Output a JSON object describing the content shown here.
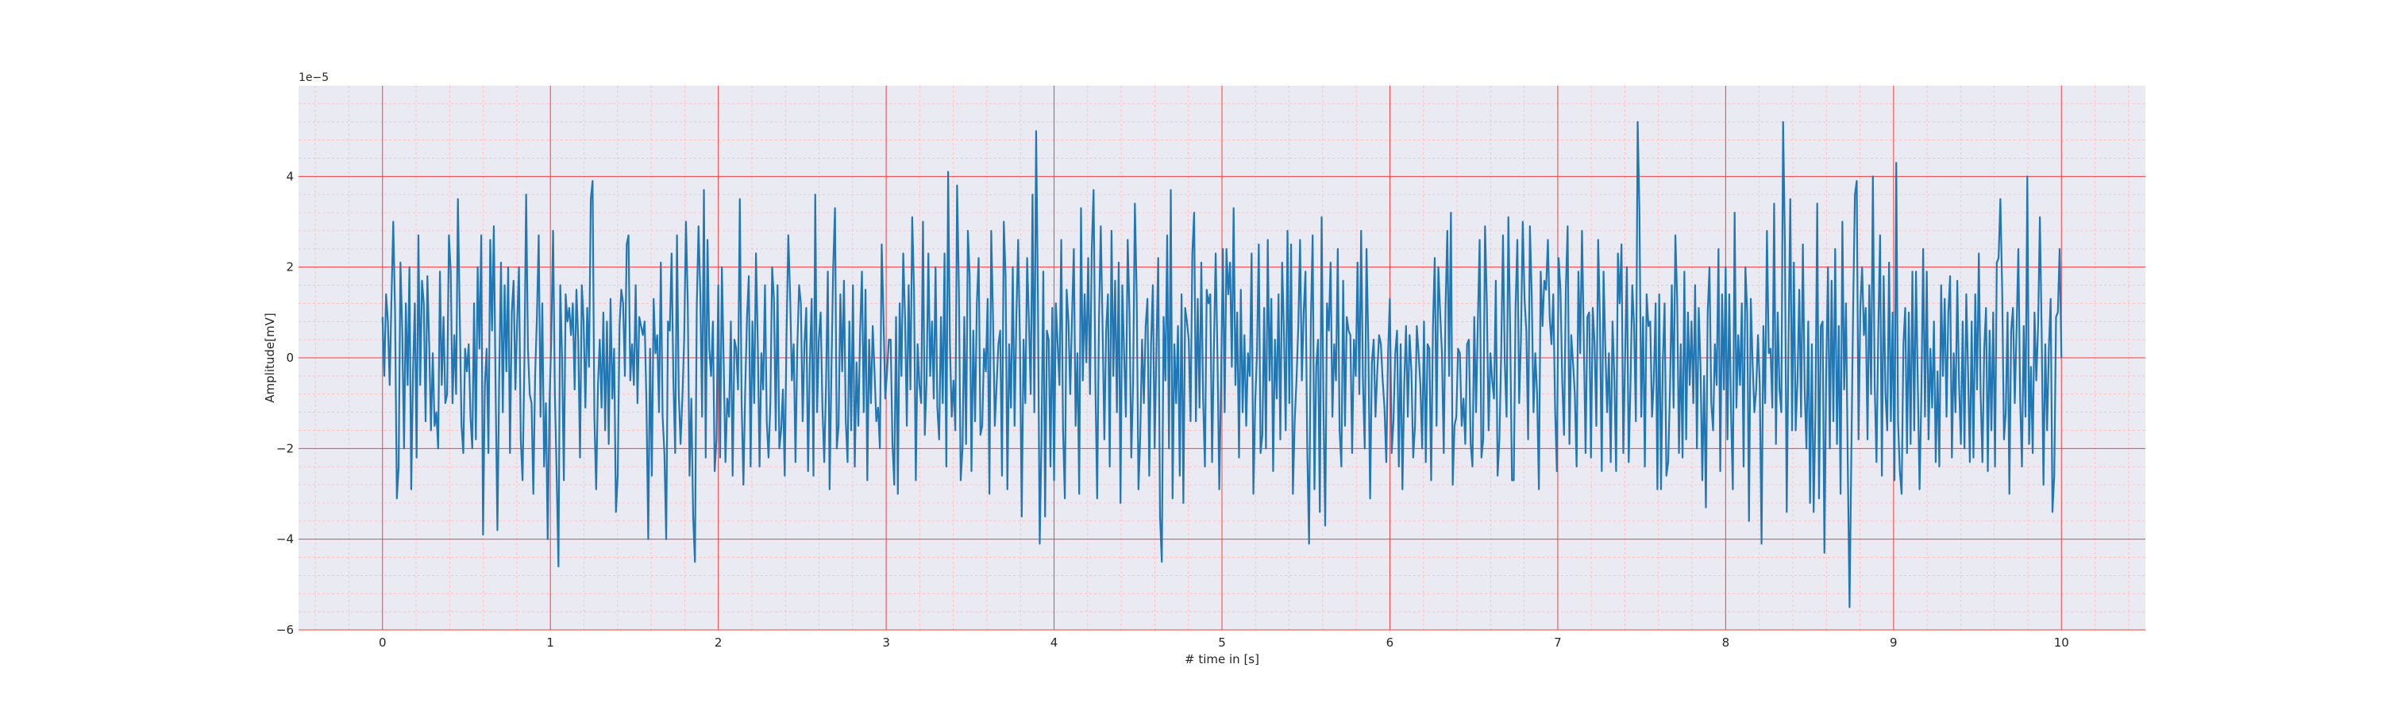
{
  "chart_data": {
    "type": "line",
    "title": "",
    "xlabel": "# time in [s]",
    "ylabel": "Amplitude[mV]",
    "xlim": [
      -0.5,
      10.5
    ],
    "ylim": [
      -6.0,
      6.0
    ],
    "y_offset_label": "1e−5",
    "x_ticks": [
      "0",
      "1",
      "2",
      "3",
      "4",
      "5",
      "6",
      "7",
      "8",
      "9",
      "10"
    ],
    "y_ticks": [
      "−6",
      "−4",
      "−2",
      "0",
      "2",
      "4"
    ],
    "grid": {
      "major": true,
      "minor": true,
      "major_color": "#ff3b3b",
      "minor_color": "#ffb3b3"
    },
    "colors": {
      "background": "#eaeaf2",
      "line": "#1f77b4"
    },
    "series": [
      {
        "x_start": 0,
        "x_end": 10,
        "values": [
          0.9,
          -0.4,
          1.4,
          0.8,
          -0.6,
          1.3,
          3.0,
          1.0,
          -3.1,
          -2.4,
          2.1,
          0.6,
          -2.0,
          1.2,
          -0.6,
          2.0,
          -2.9,
          -0.3,
          1.2,
          -2.2,
          2.7,
          -0.6,
          1.7,
          1.2,
          -1.4,
          1.8,
          0.3,
          -1.6,
          0.1,
          -1.5,
          -1.2,
          -2.0,
          1.9,
          -0.6,
          0.9,
          -1.0,
          -0.8,
          2.7,
          1.9,
          -1.0,
          0.5,
          -0.8,
          3.5,
          1.0,
          -1.5,
          -2.1,
          0.2,
          -0.3,
          0.3,
          -1.3,
          -2.0,
          1.2,
          -1.8,
          2.0,
          0.2,
          2.7,
          -3.9,
          -0.6,
          0.2,
          -2.1,
          2.6,
          0.6,
          2.9,
          -0.7,
          -3.8,
          -0.4,
          2.1,
          -1.2,
          1.6,
          -0.3,
          2.0,
          -2.1,
          1.0,
          1.7,
          -0.7,
          0.8,
          2.0,
          -1.8,
          -2.7,
          -0.2,
          3.6,
          0.2,
          -0.8,
          -1.0,
          -3.0,
          -0.4,
          0.9,
          2.7,
          -1.3,
          1.2,
          -2.4,
          -1.0,
          -4.0,
          -1.0,
          0.4,
          2.8,
          -0.8,
          -2.6,
          -4.6,
          1.6,
          0.0,
          -2.7,
          1.4,
          0.8,
          1.1,
          0.5,
          1.2,
          -0.7,
          1.5,
          0.4,
          -2.2,
          1.6,
          0.8,
          -1.1,
          1.1,
          -0.2,
          3.5,
          3.9,
          -1.3,
          -2.9,
          -0.6,
          0.4,
          -1.1,
          1.0,
          -1.6,
          0.8,
          -1.9,
          1.3,
          -0.9,
          0.2,
          -3.4,
          -2.6,
          0.7,
          1.5,
          1.2,
          -0.4,
          2.5,
          2.7,
          -0.5,
          0.3,
          -0.6,
          1.6,
          -1.0,
          0.9,
          0.7,
          0.5,
          0.8,
          -1.0,
          -4.0,
          0.2,
          -2.6,
          1.3,
          0.1,
          0.5,
          -1.2,
          2.1,
          -1.3,
          -2.1,
          -4.0,
          0.8,
          0.6,
          2.3,
          -0.5,
          -2.1,
          2.7,
          -0.8,
          -1.9,
          -0.9,
          0.4,
          3.0,
          1.2,
          -2.6,
          -0.9,
          -3.5,
          -4.5,
          1.1,
          2.9,
          1.4,
          -1.3,
          3.7,
          -2.2,
          2.6,
          0.2,
          -0.4,
          0.8,
          -2.5,
          -1.8,
          1.6,
          -2.2,
          2.0,
          -0.1,
          -2.3,
          -0.9,
          -1.3,
          0.8,
          -2.6,
          0.4,
          0.2,
          -0.7,
          3.5,
          -1.0,
          -2.8,
          -0.7,
          0.9,
          1.8,
          -2.4,
          0.8,
          -1.0,
          2.3,
          0.3,
          -2.4,
          0.1,
          -0.7,
          1.6,
          -1.4,
          -2.2,
          -1.0,
          2.0,
          1.3,
          -1.6,
          1.6,
          -2.0,
          -1.6,
          -0.7,
          -2.6,
          0.5,
          2.7,
          1.4,
          -0.5,
          0.3,
          -2.3,
          0.2,
          1.6,
          1.2,
          -1.4,
          0.3,
          1.1,
          -2.5,
          -0.1,
          1.3,
          -2.6,
          3.6,
          -1.2,
          0.4,
          1.0,
          -1.1,
          -2.3,
          -0.6,
          1.9,
          -2.9,
          -0.3,
          2.0,
          3.3,
          -2.0,
          -1.5,
          1.4,
          -0.3,
          1.7,
          -1.4,
          -2.3,
          0.8,
          -1.6,
          1.6,
          -2.4,
          -0.1,
          -1.5,
          0.6,
          1.9,
          -1.2,
          1.5,
          -2.7,
          0.4,
          -1.0,
          0.7,
          -0.3,
          -1.4,
          -1.1,
          -2.0,
          2.5,
          0.9,
          -0.9,
          -0.3,
          0.4,
          0.4,
          -1.9,
          -2.8,
          0.9,
          -3.0,
          1.2,
          -0.4,
          2.3,
          0.9,
          -1.5,
          1.6,
          -0.7,
          3.1,
          1.5,
          -2.7,
          0.3,
          -0.6,
          -1.0,
          3.0,
          -1.7,
          -0.5,
          2.3,
          -0.4,
          0.8,
          -0.9,
          2.0,
          -1.1,
          -1.8,
          0.9,
          -1.0,
          2.3,
          -2.4,
          4.1,
          0.3,
          -1.3,
          -0.5,
          -1.6,
          3.8,
          1.5,
          -2.7,
          -2.0,
          0.9,
          -1.9,
          2.8,
          1.8,
          -2.5,
          0.6,
          -1.4,
          1.2,
          2.2,
          -1.7,
          -1.5,
          0.2,
          -0.3,
          1.3,
          -3.0,
          2.8,
          0.9,
          -1.5,
          -0.6,
          0.3,
          0.6,
          -2.6,
          3.0,
          1.8,
          -2.9,
          0.3,
          -1.1,
          2.0,
          -1.5,
          0.9,
          2.6,
          0.3,
          -3.5,
          0.4,
          -1.0,
          2.2,
          0.8,
          -0.8,
          3.6,
          -1.2,
          5.0,
          1.3,
          -4.1,
          -1.8,
          1.9,
          -3.5,
          0.6,
          0.4,
          -2.4,
          1.1,
          -2.7,
          1.2,
          0.3,
          -0.6,
          2.6,
          -1.6,
          -3.1,
          1.5,
          0.8,
          -0.8,
          0.9,
          2.4,
          -1.5,
          0.1,
          -3.0,
          3.3,
          -0.5,
          1.4,
          -0.1,
          2.2,
          -0.8,
          2.4,
          3.7,
          -0.5,
          -3.1,
          0.8,
          2.9,
          0.7,
          -1.8,
          0.6,
          1.4,
          -2.4,
          2.8,
          -0.4,
          1.7,
          -1.2,
          2.1,
          -3.2,
          1.6,
          0.1,
          -1.3,
          2.6,
          1.0,
          -2.2,
          -0.6,
          3.4,
          1.4,
          -2.9,
          -1.7,
          0.4,
          -1.0,
          0.7,
          1.3,
          -2.6,
          0.3,
          1.6,
          -2.0,
          0.2,
          2.2,
          -3.5,
          -4.5,
          0.9,
          -0.5,
          2.7,
          -2.0,
          3.7,
          -3.1,
          0.3,
          -1.0,
          0.7,
          -2.6,
          1.4,
          -3.2,
          1.1,
          0.8,
          0.4,
          -1.4,
          2.3,
          3.2,
          -1.4,
          1.3,
          -1.1,
          2.1,
          -0.9,
          -2.4,
          1.5,
          1.2,
          1.4,
          -2.3,
          0.2,
          2.3,
          0.0,
          -2.9,
          -0.5,
          2.4,
          -1.2,
          2.4,
          1.4,
          2.1,
          -0.2,
          3.3,
          -0.6,
          1.0,
          -2.2,
          1.5,
          -1.2,
          0.5,
          -1.5,
          0.1,
          -0.4,
          2.3,
          -3.0,
          -1.0,
          0.1,
          2.5,
          -2.1,
          -1.7,
          1.1,
          -2.0,
          2.6,
          -0.5,
          1.3,
          -2.5,
          0.4,
          -0.9,
          1.4,
          -1.8,
          2.1,
          0.6,
          -1.6,
          2.8,
          -1.0,
          2.5,
          -3.0,
          -1.4,
          -0.5,
          0.7,
          2.6,
          -0.5,
          1.0,
          1.9,
          -2.0,
          -4.1,
          0.8,
          2.7,
          -2.9,
          -0.2,
          0.4,
          -3.4,
          3.1,
          -1.0,
          -3.7,
          1.2,
          0.6,
          2.1,
          -1.3,
          0.3,
          -0.5,
          2.4,
          -1.6,
          -2.4,
          1.7,
          -1.5,
          0.9,
          0.6,
          0.5,
          -2.1,
          0.4,
          -0.4,
          2.1,
          -0.8,
          2.8,
          -0.5,
          -2.0,
          2.4,
          0.3,
          -3.1,
          -0.1,
          0.4,
          -1.3,
          -0.3,
          0.5,
          0.3,
          -0.5,
          -1.1,
          -2.3,
          0.1,
          1.3,
          -2.1,
          -1.4,
          0.1,
          0.6,
          -2.4,
          0.3,
          -2.9,
          -0.6,
          0.7,
          -1.3,
          0.5,
          -0.3,
          -2.2,
          -1.5,
          0.7,
          0.1,
          -0.6,
          -2.0,
          0.8,
          -2.3,
          0.3,
          0.2,
          -2.7,
          0.7,
          2.2,
          -1.5,
          2.0,
          1.0,
          0.1,
          -2.1,
          1.1,
          2.8,
          -0.4,
          3.2,
          -2.8,
          -1.5,
          -1.3,
          0.2,
          0.1,
          -1.5,
          -0.9,
          -1.9,
          0.3,
          0.4,
          -1.9,
          -2.4,
          0.9,
          -1.2,
          0.8,
          2.6,
          -2.2,
          -1.8,
          2.9,
          1.2,
          -1.6,
          0.1,
          -0.5,
          -0.9,
          1.7,
          -2.6,
          -1.8,
          0.1,
          2.7,
          -0.1,
          -1.3,
          3.1,
          0.6,
          -2.7,
          -2.7,
          1.1,
          2.6,
          -1.0,
          0.4,
          3.0,
          1.3,
          0.6,
          -1.8,
          2.9,
          1.4,
          -1.2,
          0.1,
          -0.8,
          -2.9,
          1.9,
          0.7,
          1.7,
          1.5,
          2.6,
          0.9,
          0.3,
          1.4,
          -1.1,
          -2.5,
          2.2,
          1.5,
          -0.5,
          -1.7,
          1.5,
          2.9,
          -1.9,
          0.5,
          -0.1,
          -0.8,
          -2.4,
          1.9,
          0.1,
          2.8,
          0.4,
          -2.1,
          0.9,
          1.0,
          -2.2,
          1.1,
          0.3,
          -1.5,
          2.6,
          0.8,
          -2.5,
          1.9,
          0.2,
          -1.2,
          0.1,
          -2.3,
          0.8,
          -0.4,
          -2.5,
          2.3,
          1.2,
          2.5,
          -2.1,
          0.0,
          2.0,
          -2.3,
          -0.6,
          1.6,
          0.7,
          -1.4,
          5.2,
          3.2,
          -1.3,
          0.9,
          -2.4,
          1.4,
          0.7,
          0.8,
          -1.3,
          -0.5,
          1.2,
          -2.9,
          1.4,
          -2.9,
          -0.1,
          1.2,
          -2.6,
          -2.3,
          -0.7,
          1.6,
          -1.1,
          2.7,
          1.3,
          -2.1,
          0.3,
          -2.2,
          1.9,
          -1.8,
          1.0,
          -0.6,
          0.8,
          -1.0,
          1.6,
          -2.0,
          1.1,
          -0.2,
          -2.7,
          -0.4,
          -3.3,
          1.0,
          2.0,
          -1.0,
          -1.6,
          0.3,
          -0.6,
          2.4,
          -2.5,
          1.4,
          -0.7,
          2.0,
          -1.8,
          1.4,
          -1.2,
          -2.9,
          3.2,
          -1.1,
          0.5,
          -0.6,
          1.2,
          -2.4,
          2.0,
          1.0,
          -3.6,
          1.3,
          -0.1,
          -1.2,
          -0.7,
          0.5,
          -0.6,
          -4.1,
          0.7,
          -1.0,
          2.8,
          0.1,
          0.2,
          -1.1,
          3.4,
          -1.9,
          1.0,
          -0.7,
          -1.2,
          5.2,
          2.5,
          -3.4,
          0.3,
          3.5,
          -1.6,
          2.1,
          -1.6,
          -0.5,
          1.5,
          -1.3,
          2.5,
          -0.7,
          -2.0,
          0.8,
          -3.2,
          0.3,
          -3.4,
          -1.2,
          3.4,
          -3.1,
          0.7,
          0.8,
          -4.3,
          -0.3,
          2.0,
          -2.0,
          1.7,
          -1.4,
          2.4,
          -1.9,
          0.7,
          -3.0,
          3.0,
          -0.7,
          1.2,
          -2.3,
          -5.5,
          -2.1,
          1.1,
          3.6,
          3.9,
          -1.8,
          1.1,
          2.0,
          0.5,
          1.1,
          -1.8,
          1.6,
          -0.8,
          4.0,
          -0.6,
          -2.3,
          0.6,
          2.7,
          -2.6,
          1.8,
          -0.8,
          -1.6,
          2.1,
          -1.4,
          1.0,
          -2.7,
          4.3,
          -1.4,
          -2.5,
          -3.0,
          0.3,
          1.1,
          -2.1,
          1.0,
          -1.9,
          1.9,
          -1.6,
          1.9,
          -0.6,
          -2.9,
          -0.8,
          2.4,
          -1.3,
          1.9,
          -1.8,
          0.2,
          -1.1,
          0.8,
          -2.3,
          -0.3,
          -2.4,
          1.6,
          -0.4,
          1.3,
          -1.3,
          1.0,
          1.8,
          -2.2,
          0.1,
          -1.2,
          1.7,
          -0.6,
          -1.9,
          0.8,
          -2.0,
          1.4,
          -0.3,
          -2.3,
          0.8,
          -2.2,
          1.4,
          -0.7,
          2.3,
          -0.8,
          -2.3,
          0.2,
          1.1,
          -2.5,
          0.6,
          -1.6,
          1.0,
          -2.4,
          2.1,
          2.2,
          3.5,
          1.5,
          -1.8,
          -1.2,
          1.0,
          -3.0,
          0.6,
          1.1,
          -1.0,
          0.6,
          2.4,
          -0.9,
          -2.4,
          0.7,
          -1.3,
          4.0,
          -1.9,
          -0.2,
          -2.1,
          1.0,
          -0.5,
          0.7,
          3.1,
          0.5,
          -2.8,
          0.3,
          -1.6,
          0.2,
          1.3,
          -3.4,
          -2.6,
          0.9,
          1.0,
          2.4,
          0.0
        ]
      }
    ]
  }
}
